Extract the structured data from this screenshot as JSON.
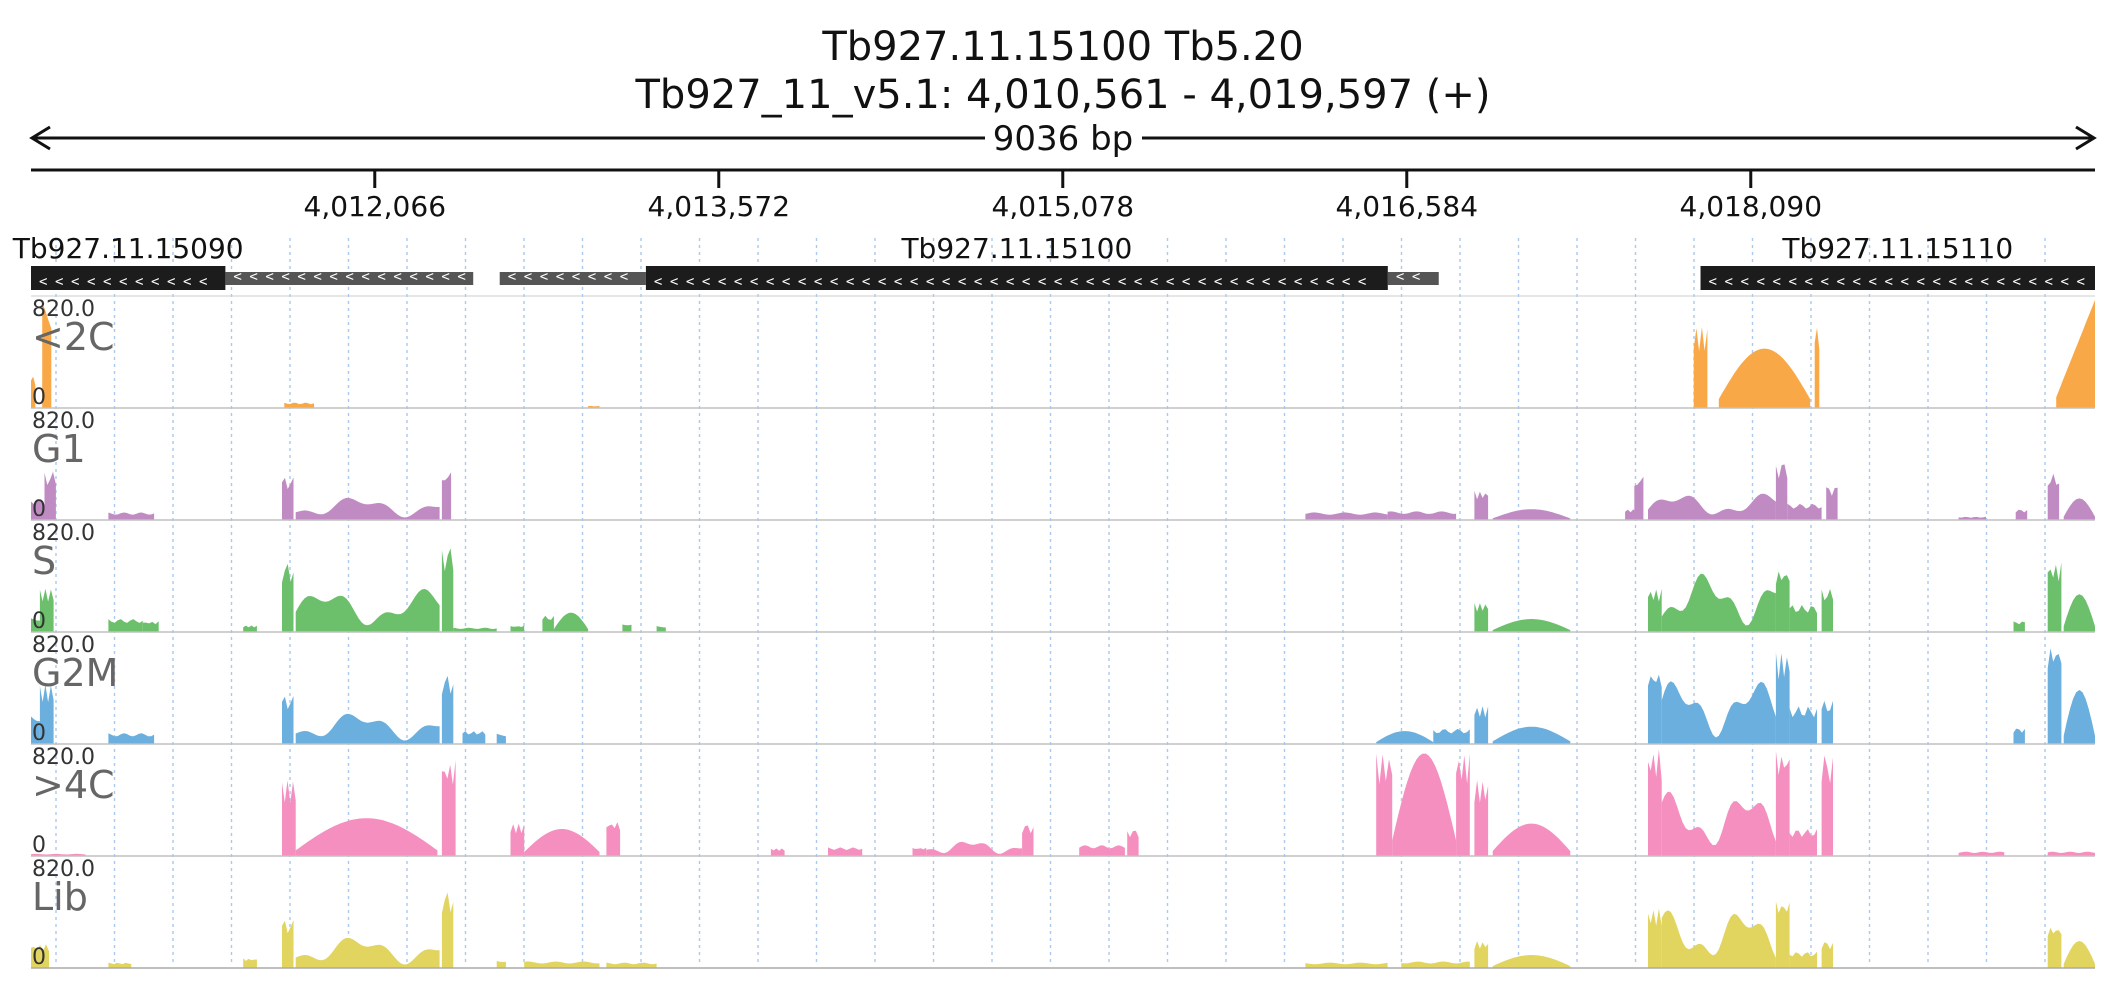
{
  "title": {
    "line1": "Tb927.11.15100  Tb5.20",
    "line2": "Tb927_11_v5.1: 4,010,561 - 4,019,597 (+)"
  },
  "span_label": "9036 bp",
  "region": {
    "chrom": "Tb927_11_v5.1",
    "start": 4010561,
    "end": 4019597,
    "strand": "+"
  },
  "ticks": [
    {
      "pos": 4012066,
      "label": "4,012,066"
    },
    {
      "pos": 4013572,
      "label": "4,013,572"
    },
    {
      "pos": 4015078,
      "label": "4,015,078"
    },
    {
      "pos": 4016584,
      "label": "4,016,584"
    },
    {
      "pos": 4018090,
      "label": "4,018,090"
    }
  ],
  "genes": [
    {
      "label": "Tb927.11.15090",
      "cds": [
        4010561,
        4011412
      ],
      "utr": [
        [
          4011412,
          4012497
        ]
      ]
    },
    {
      "label": "Tb927.11.15100",
      "cds": [
        4013253,
        4016501
      ],
      "utr": [
        [
          4012613,
          4013253
        ],
        [
          4016501,
          4016724
        ]
      ]
    },
    {
      "label": "Tb927.11.15110",
      "cds": [
        4017870,
        4019597
      ],
      "utr": []
    }
  ],
  "gene_arrow_glyph": "<",
  "tracks": [
    {
      "name": "<2C",
      "max_label": "820.0",
      "zero_label": "0",
      "color": "#f9a848",
      "peaks": [
        [
          4010561,
          4010580,
          0.3
        ],
        [
          4010610,
          4010650,
          1.0
        ],
        [
          4011670,
          4011800,
          0.05
        ],
        [
          4013000,
          4013050,
          0.02
        ],
        [
          4017840,
          4017900,
          0.75
        ],
        [
          4017950,
          4018350,
          0.55,
          "dome"
        ],
        [
          4018370,
          4018390,
          0.75
        ],
        [
          4019427,
          4019597,
          1.0,
          "ramp"
        ]
      ]
    },
    {
      "name": "G1",
      "max_label": "820.0",
      "zero_label": "0",
      "color": "#c08bc3",
      "peaks": [
        [
          4010561,
          4010620,
          0.2
        ],
        [
          4010620,
          4010670,
          0.45
        ],
        [
          4010900,
          4011100,
          0.07
        ],
        [
          4011660,
          4011710,
          0.4
        ],
        [
          4011720,
          4012350,
          0.22,
          "wave"
        ],
        [
          4012360,
          4012400,
          0.52
        ],
        [
          4016140,
          4016500,
          0.07
        ],
        [
          4016500,
          4016800,
          0.08
        ],
        [
          4016880,
          4016940,
          0.27
        ],
        [
          4016960,
          4017300,
          0.1,
          "dome"
        ],
        [
          4017540,
          4017600,
          0.1
        ],
        [
          4017580,
          4017620,
          0.45
        ],
        [
          4017640,
          4018200,
          0.25,
          "wave"
        ],
        [
          4018200,
          4018250,
          0.55
        ],
        [
          4018250,
          4018400,
          0.15
        ],
        [
          4018420,
          4018470,
          0.32
        ],
        [
          4019000,
          4019120,
          0.03
        ],
        [
          4019250,
          4019300,
          0.1
        ],
        [
          4019390,
          4019440,
          0.43
        ],
        [
          4019460,
          4019597,
          0.2,
          "dome"
        ]
      ]
    },
    {
      "name": "S",
      "max_label": "820.0",
      "zero_label": "0",
      "color": "#6cc06b",
      "peaks": [
        [
          4010561,
          4010600,
          0.15
        ],
        [
          4010600,
          4010660,
          0.4
        ],
        [
          4010900,
          4011050,
          0.12
        ],
        [
          4011050,
          4011120,
          0.1
        ],
        [
          4011490,
          4011550,
          0.06
        ],
        [
          4011660,
          4011710,
          0.65
        ],
        [
          4011720,
          4012350,
          0.4,
          "wave"
        ],
        [
          4012360,
          4012410,
          0.8
        ],
        [
          4012410,
          4012600,
          0.04
        ],
        [
          4012660,
          4012720,
          0.06
        ],
        [
          4012800,
          4012850,
          0.15
        ],
        [
          4012850,
          4013000,
          0.18,
          "dome"
        ],
        [
          4013150,
          4013190,
          0.09
        ],
        [
          4013300,
          4013340,
          0.06
        ],
        [
          4016880,
          4016940,
          0.27
        ],
        [
          4016960,
          4017300,
          0.12,
          "dome"
        ],
        [
          4017640,
          4017700,
          0.4
        ],
        [
          4017700,
          4018200,
          0.55,
          "wave"
        ],
        [
          4018200,
          4018260,
          0.6
        ],
        [
          4018260,
          4018380,
          0.25
        ],
        [
          4018400,
          4018450,
          0.4
        ],
        [
          4019240,
          4019290,
          0.1
        ],
        [
          4019390,
          4019450,
          0.65
        ],
        [
          4019460,
          4019597,
          0.35,
          "dome"
        ]
      ]
    },
    {
      "name": "G2M",
      "max_label": "820.0",
      "zero_label": "0",
      "color": "#6aafdd",
      "peaks": [
        [
          4010561,
          4010600,
          0.3
        ],
        [
          4010600,
          4010660,
          0.55
        ],
        [
          4010900,
          4011100,
          0.1
        ],
        [
          4011660,
          4011710,
          0.45
        ],
        [
          4011720,
          4012350,
          0.3,
          "wave"
        ],
        [
          4012360,
          4012410,
          0.65
        ],
        [
          4012450,
          4012550,
          0.12
        ],
        [
          4012600,
          4012640,
          0.1
        ],
        [
          4016450,
          4016700,
          0.12,
          "dome"
        ],
        [
          4016700,
          4016860,
          0.14
        ],
        [
          4016880,
          4016940,
          0.35
        ],
        [
          4016960,
          4017300,
          0.16,
          "dome"
        ],
        [
          4017640,
          4017700,
          0.7
        ],
        [
          4017700,
          4018200,
          0.6,
          "wave"
        ],
        [
          4018200,
          4018260,
          0.85
        ],
        [
          4018260,
          4018380,
          0.35
        ],
        [
          4018400,
          4018450,
          0.4
        ],
        [
          4019240,
          4019290,
          0.15
        ],
        [
          4019390,
          4019450,
          0.95
        ],
        [
          4019460,
          4019597,
          0.5,
          "dome"
        ]
      ]
    },
    {
      "name": ">4C",
      "max_label": "820.0",
      "zero_label": "0",
      "color": "#f48fbf",
      "peaks": [
        [
          4010561,
          4010800,
          0.02
        ],
        [
          4011660,
          4011720,
          0.7
        ],
        [
          4011720,
          4012340,
          0.35,
          "dome"
        ],
        [
          4012360,
          4012420,
          0.9
        ],
        [
          4012660,
          4012720,
          0.3
        ],
        [
          4012720,
          4013050,
          0.25,
          "dome"
        ],
        [
          4013080,
          4013140,
          0.33
        ],
        [
          4013800,
          4013860,
          0.07
        ],
        [
          4014050,
          4014200,
          0.08
        ],
        [
          4014420,
          4014480,
          0.08
        ],
        [
          4014480,
          4014900,
          0.15,
          "wave"
        ],
        [
          4014900,
          4014950,
          0.3
        ],
        [
          4015150,
          4015350,
          0.1
        ],
        [
          4015360,
          4015410,
          0.25
        ],
        [
          4016450,
          4016520,
          0.95
        ],
        [
          4016520,
          4016800,
          0.95,
          "dome"
        ],
        [
          4016800,
          4016860,
          0.95
        ],
        [
          4016880,
          4016940,
          0.7
        ],
        [
          4016960,
          4017300,
          0.3,
          "dome"
        ],
        [
          4017640,
          4017700,
          1.0
        ],
        [
          4017700,
          4018200,
          0.6,
          "wave"
        ],
        [
          4018200,
          4018260,
          1.0
        ],
        [
          4018260,
          4018380,
          0.25
        ],
        [
          4018400,
          4018450,
          0.95
        ],
        [
          4019000,
          4019200,
          0.04
        ],
        [
          4019390,
          4019597,
          0.04
        ]
      ]
    },
    {
      "name": "Lib",
      "max_label": "820.0",
      "zero_label": "0",
      "color": "#e1d45f",
      "peaks": [
        [
          4010561,
          4010640,
          0.22
        ],
        [
          4010900,
          4011000,
          0.05
        ],
        [
          4011490,
          4011550,
          0.09
        ],
        [
          4011660,
          4011710,
          0.45
        ],
        [
          4011720,
          4012350,
          0.3,
          "wave"
        ],
        [
          4012360,
          4012410,
          0.72
        ],
        [
          4012600,
          4012640,
          0.08
        ],
        [
          4012720,
          4013050,
          0.06
        ],
        [
          4013080,
          4013300,
          0.05
        ],
        [
          4016140,
          4016500,
          0.05
        ],
        [
          4016560,
          4016860,
          0.06
        ],
        [
          4016880,
          4016940,
          0.25
        ],
        [
          4016960,
          4017300,
          0.12,
          "dome"
        ],
        [
          4017640,
          4017700,
          0.55
        ],
        [
          4017700,
          4018200,
          0.55,
          "wave"
        ],
        [
          4018200,
          4018260,
          0.65
        ],
        [
          4018260,
          4018380,
          0.15
        ],
        [
          4018400,
          4018450,
          0.25
        ],
        [
          4019390,
          4019450,
          0.4
        ],
        [
          4019460,
          4019597,
          0.25,
          "dome"
        ]
      ]
    }
  ]
}
